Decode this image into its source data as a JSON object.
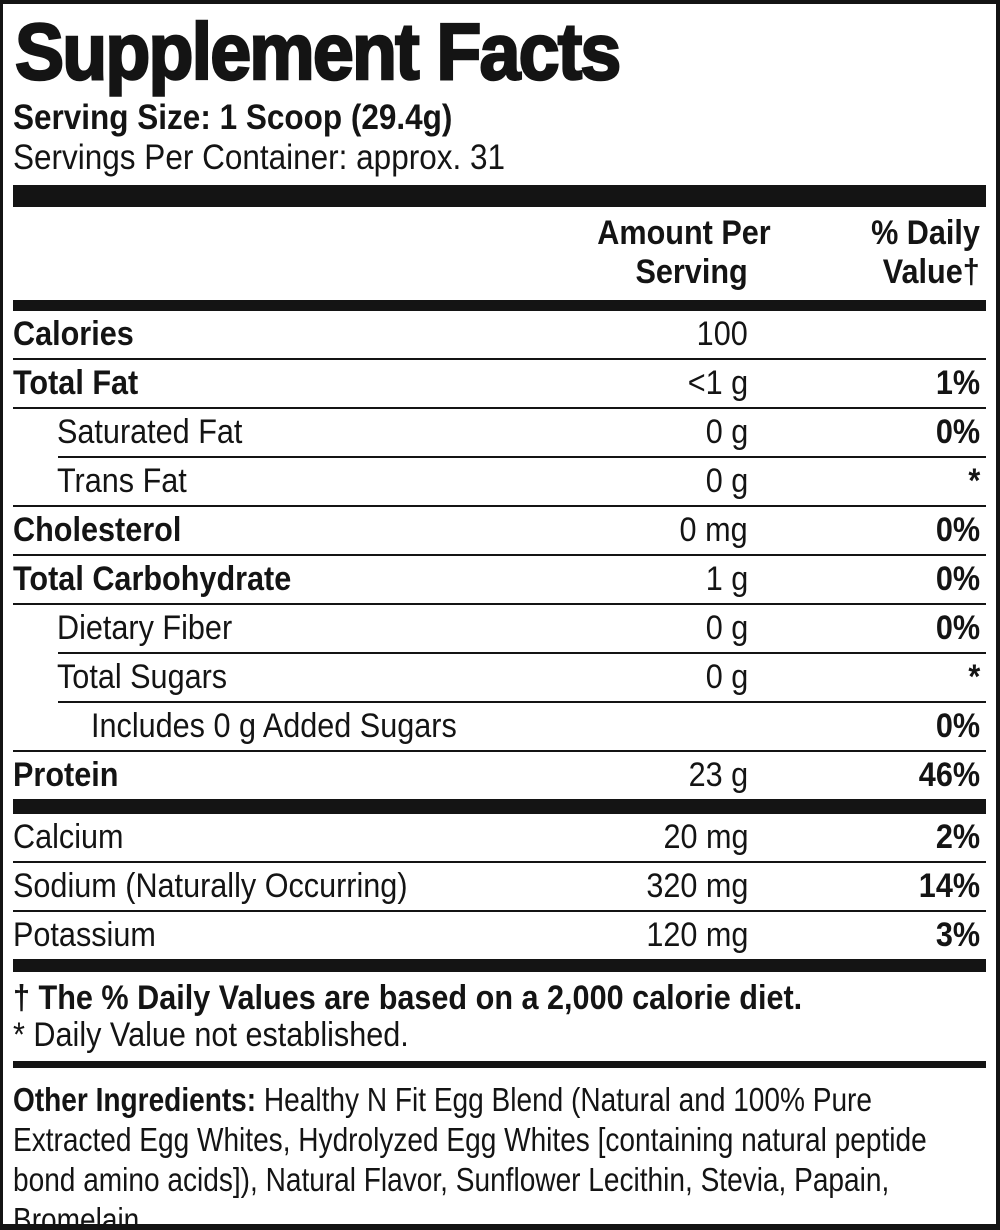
{
  "title": "Supplement Facts",
  "serving": {
    "size": "Serving Size: 1 Scoop (29.4g)",
    "per_container": "Servings Per Container: approx. 31"
  },
  "table": {
    "header": {
      "amount_line1": "Amount Per",
      "amount_line2": "Serving",
      "dv_line1": "% Daily",
      "dv_line2": "Value†"
    },
    "rows": [
      {
        "name": "Calories",
        "amount": "100",
        "dv": "",
        "bold": true,
        "indent": 0,
        "divider": "none"
      },
      {
        "name": "Total Fat",
        "amount": "<1 g",
        "dv": "1%",
        "bold": true,
        "indent": 0,
        "divider": "full"
      },
      {
        "name": "Saturated Fat",
        "amount": "0 g",
        "dv": "0%",
        "bold": false,
        "indent": 1,
        "divider": "full"
      },
      {
        "name": "Trans Fat",
        "amount": "0 g",
        "dv": "*",
        "bold": false,
        "indent": 1,
        "divider": "indent"
      },
      {
        "name": "Cholesterol",
        "amount": "0 mg",
        "dv": "0%",
        "bold": true,
        "indent": 0,
        "divider": "full"
      },
      {
        "name": "Total Carbohydrate",
        "amount": "1 g",
        "dv": "0%",
        "bold": true,
        "indent": 0,
        "divider": "full"
      },
      {
        "name": "Dietary Fiber",
        "amount": "0 g",
        "dv": "0%",
        "bold": false,
        "indent": 1,
        "divider": "full"
      },
      {
        "name": "Total Sugars",
        "amount": "0 g",
        "dv": "*",
        "bold": false,
        "indent": 1,
        "divider": "indent"
      },
      {
        "name": "Includes 0 g Added Sugars",
        "amount": "",
        "dv": "0%",
        "bold": false,
        "indent": 2,
        "divider": "indent"
      },
      {
        "name": "Protein",
        "amount": "23 g",
        "dv": "46%",
        "bold": true,
        "indent": 0,
        "divider": "full"
      }
    ],
    "mineral_rows": [
      {
        "name": "Calcium",
        "amount": "20 mg",
        "dv": "2%",
        "bold": false,
        "indent": 0,
        "divider": "none"
      },
      {
        "name": "Sodium (Naturally Occurring)",
        "amount": "320 mg",
        "dv": "14%",
        "bold": false,
        "indent": 0,
        "divider": "full"
      },
      {
        "name": "Potassium",
        "amount": "120 mg",
        "dv": "3%",
        "bold": false,
        "indent": 0,
        "divider": "full"
      }
    ]
  },
  "footnotes": {
    "daily_value": "† The % Daily Values are based on a 2,000 calorie diet.",
    "not_established": "* Daily Value not established."
  },
  "other_ingredients": {
    "label": "Other Ingredients:",
    "text": " Healthy N Fit Egg Blend (Natural and 100% Pure Extracted Egg Whites, Hydrolyzed Egg Whites [containing natural peptide bond amino acids]), Natural Flavor, Sunflower Lecithin, Stevia, Papain, Bromelain."
  },
  "colors": {
    "ink": "#141414",
    "background": "#ffffff"
  }
}
